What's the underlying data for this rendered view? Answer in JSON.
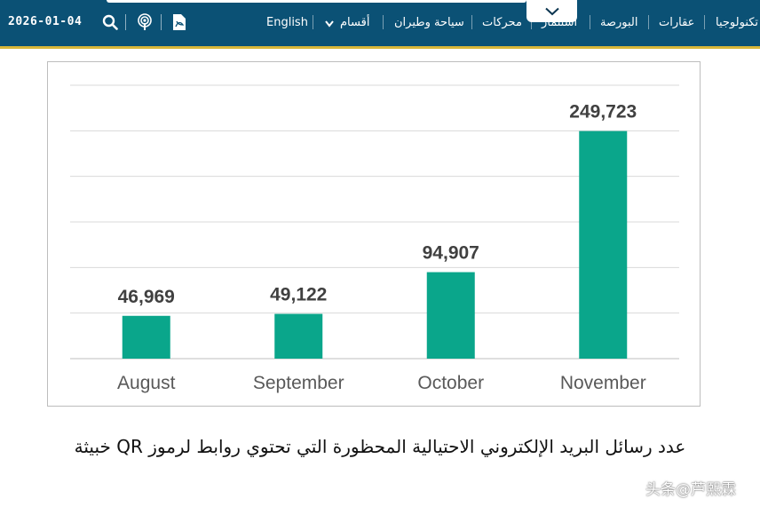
{
  "header": {
    "date": "2026-01-04",
    "icons": [
      "search-icon",
      "podcast-icon",
      "pdf-icon",
      "chevron-down-icon"
    ],
    "language": "English",
    "nav": [
      {
        "label": "تكنولوجيا"
      },
      {
        "label": "عقارات"
      },
      {
        "label": "البورصة"
      },
      {
        "label": "استثمار"
      },
      {
        "label": "محركات"
      },
      {
        "label": "سياحة وطيران"
      },
      {
        "label": "أقسام"
      }
    ],
    "colors": {
      "bar": "#0b5175",
      "accent": "#d8b73a"
    }
  },
  "chart_data": {
    "type": "bar",
    "categories": [
      "August",
      "September",
      "October",
      "November"
    ],
    "values": [
      46969,
      49122,
      94907,
      249723
    ],
    "value_labels": [
      "46,969",
      "49,122",
      "94,907",
      "249,723"
    ],
    "ylim": [
      0,
      300000
    ],
    "grid": true,
    "bar_color": "#0aa68b"
  },
  "caption": "عدد رسائل البريد الإلكتروني الاحتيالية المحظورة التي تحتوي روابط لرموز QR خبيثة",
  "watermark": "头条@芦熙霖"
}
